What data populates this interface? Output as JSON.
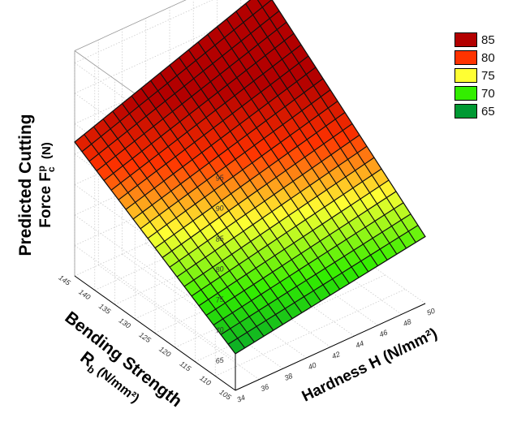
{
  "chart_data": {
    "type": "surface3d",
    "title": "",
    "zlabel_line1": "Predicted Cutting",
    "zlabel_line2": "Force F",
    "zlabel_sub": "c",
    "zlabel_sup": "p",
    "zlabel_unit": "(N)",
    "ylabel_line1": "Bending Strength",
    "ylabel_line2_main": "R",
    "ylabel_line2_sub": "b",
    "ylabel_line2_unit": "(N/mm²)",
    "xlabel": "Hardness H  (N/mm²)",
    "x": {
      "label": "Hardness H",
      "ticks": [
        "34",
        "36",
        "38",
        "40",
        "42",
        "44",
        "46",
        "48",
        "50"
      ],
      "range": [
        34,
        50
      ]
    },
    "y": {
      "label": "Bending Strength Rb",
      "ticks": [
        "105",
        "110",
        "115",
        "120",
        "125",
        "130",
        "135",
        "140",
        "145"
      ],
      "range": [
        105,
        145
      ]
    },
    "z": {
      "label": "Predicted Cutting Force Fc p",
      "ticks": [
        "65",
        "70",
        "75",
        "80",
        "85",
        "90",
        "95"
      ],
      "range": [
        60,
        95
      ]
    },
    "surface_corners": [
      {
        "x": 34,
        "y": 105,
        "z": 66
      },
      {
        "x": 50,
        "y": 105,
        "z": 71
      },
      {
        "x": 34,
        "y": 145,
        "z": 82
      },
      {
        "x": 50,
        "y": 145,
        "z": 93
      }
    ],
    "legend": [
      {
        "label": "85",
        "color": "#b30000"
      },
      {
        "label": "80",
        "color": "#ff3300"
      },
      {
        "label": "75",
        "color": "#ffff33"
      },
      {
        "label": "70",
        "color": "#33ee00"
      },
      {
        "label": "65",
        "color": "#009933"
      }
    ],
    "grid": true,
    "legend_position": "top-right"
  }
}
